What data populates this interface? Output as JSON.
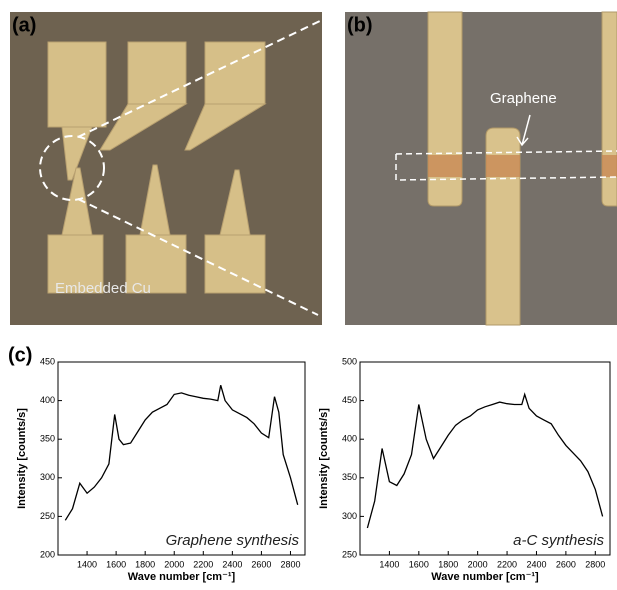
{
  "panel_labels": [
    "(a)",
    "(b)",
    "(c)"
  ],
  "annotations": [
    "Embedded Cu",
    "Graphene"
  ],
  "chart_data": [
    {
      "type": "line",
      "title": "Graphene synthesis",
      "xlabel": "Wave number [cm⁻¹]",
      "ylabel": "Intensity [counts/s]",
      "xlim": [
        1200,
        2900
      ],
      "xticks": [
        1400,
        1600,
        1800,
        2000,
        2200,
        2400,
        2600,
        2800
      ],
      "ylim": [
        200,
        450
      ],
      "yticks": [
        200,
        250,
        300,
        350,
        400,
        450
      ],
      "series": [
        {
          "color": "#000000",
          "x": [
            1250,
            1300,
            1350,
            1400,
            1450,
            1500,
            1550,
            1590,
            1620,
            1650,
            1700,
            1750,
            1800,
            1850,
            1900,
            1950,
            2000,
            2050,
            2100,
            2150,
            2200,
            2250,
            2300,
            2320,
            2350,
            2400,
            2450,
            2500,
            2550,
            2600,
            2650,
            2690,
            2720,
            2750,
            2800,
            2850
          ],
          "values": [
            245,
            260,
            293,
            280,
            288,
            300,
            318,
            382,
            350,
            343,
            345,
            360,
            375,
            385,
            390,
            395,
            408,
            410,
            407,
            405,
            403,
            402,
            400,
            420,
            400,
            388,
            383,
            378,
            370,
            358,
            352,
            405,
            385,
            330,
            300,
            265
          ]
        }
      ]
    },
    {
      "type": "line",
      "title": "a-C synthesis",
      "xlabel": "Wave number [cm⁻¹]",
      "ylabel": "Intensity [counts/s]",
      "xlim": [
        1200,
        2900
      ],
      "xticks": [
        1400,
        1600,
        1800,
        2000,
        2200,
        2400,
        2600,
        2800
      ],
      "ylim": [
        250,
        500
      ],
      "yticks": [
        250,
        300,
        350,
        400,
        450,
        500
      ],
      "series": [
        {
          "color": "#000000",
          "x": [
            1250,
            1300,
            1350,
            1400,
            1450,
            1500,
            1550,
            1600,
            1650,
            1700,
            1750,
            1800,
            1850,
            1900,
            1950,
            2000,
            2050,
            2100,
            2150,
            2200,
            2250,
            2300,
            2320,
            2350,
            2400,
            2450,
            2500,
            2550,
            2600,
            2650,
            2700,
            2750,
            2800,
            2850
          ],
          "values": [
            285,
            320,
            388,
            345,
            340,
            355,
            380,
            445,
            400,
            375,
            390,
            405,
            418,
            425,
            430,
            438,
            442,
            445,
            448,
            446,
            445,
            445,
            458,
            440,
            430,
            425,
            420,
            405,
            392,
            382,
            372,
            358,
            335,
            300
          ]
        }
      ]
    }
  ]
}
